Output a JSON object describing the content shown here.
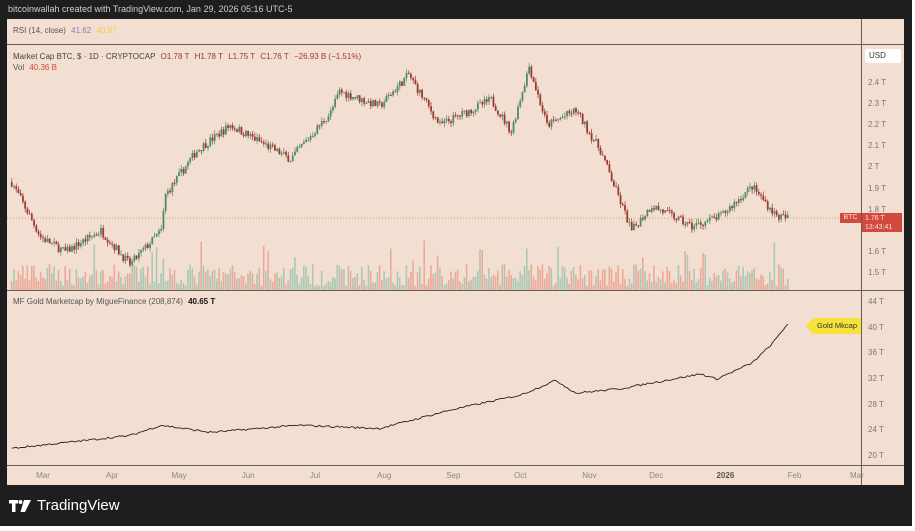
{
  "header": {
    "attribution": "bitcoinwallah created with TradingView.com, Jan 29, 2026 05:16 UTC-5"
  },
  "rsi": {
    "label": "RSI (14, close)",
    "value1": "41.62",
    "value2": "40.97",
    "color1": "#9b6fc0",
    "color2": "#f0d040"
  },
  "main": {
    "symbol": "Market Cap BTC, $ · 1D · CRYPTOCAP",
    "open": "O1.78 T",
    "high": "H1.78 T",
    "low": "L1.75 T",
    "close": "C1.76 T",
    "change": "−26.93 B (−1.51%)",
    "vol_label": "Vol",
    "vol_value": "40.36 B",
    "currency": "USD",
    "axis_ticks": [
      "2.4 T",
      "2.3 T",
      "2.2 T",
      "2.1 T",
      "2 T",
      "1.9 T",
      "1.8 T",
      "1.6 T",
      "1.5 T"
    ],
    "last_tag": "BTC",
    "last_price": "1.76 T",
    "countdown": "13:43:41"
  },
  "gold": {
    "label": "MF Gold Marketcap by MigueFinance (208,874)",
    "value": "40.65 T",
    "tag": "Gold Mkcap",
    "axis_ticks": [
      "44 T",
      "40 T",
      "36 T",
      "32 T",
      "28 T",
      "24 T",
      "20 T"
    ]
  },
  "time_axis": [
    "Mar",
    "Apr",
    "May",
    "Jun",
    "Jul",
    "Aug",
    "Sep",
    "Oct",
    "Nov",
    "Dec",
    "2026",
    "Feb",
    "Mar"
  ],
  "footer": {
    "brand": "TradingView"
  },
  "colors": {
    "background": "#f2dfd1",
    "up": "#4f8a6a",
    "down": "#9b3a2e",
    "last_price": "#d24a3c",
    "gold_tag": "#f5e23a"
  },
  "chart_data": [
    {
      "type": "candlestick",
      "title": "Market Cap BTC, $ · 1D · CRYPTOCAP",
      "unit": "T USD",
      "ylim": [
        1.45,
        2.55
      ],
      "keypoints": [
        [
          "2025-02-15",
          1.93
        ],
        [
          "2025-02-28",
          1.67
        ],
        [
          "2025-03-11",
          1.6
        ],
        [
          "2025-03-27",
          1.7
        ],
        [
          "2025-04-09",
          1.54
        ],
        [
          "2025-04-23",
          1.7
        ],
        [
          "2025-04-25",
          1.87
        ],
        [
          "2025-05-09",
          2.08
        ],
        [
          "2025-05-24",
          2.2
        ],
        [
          "2025-06-20",
          2.04
        ],
        [
          "2025-07-08",
          2.26
        ],
        [
          "2025-07-12",
          2.36
        ],
        [
          "2025-07-30",
          2.29
        ],
        [
          "2025-08-12",
          2.44
        ],
        [
          "2025-08-26",
          2.2
        ],
        [
          "2025-09-18",
          2.32
        ],
        [
          "2025-09-27",
          2.17
        ],
        [
          "2025-10-05",
          2.48
        ],
        [
          "2025-10-13",
          2.2
        ],
        [
          "2025-10-26",
          2.27
        ],
        [
          "2025-11-06",
          2.08
        ],
        [
          "2025-11-20",
          1.7
        ],
        [
          "2025-11-29",
          1.82
        ],
        [
          "2025-12-17",
          1.72
        ],
        [
          "2025-12-30",
          1.77
        ],
        [
          "2026-01-13",
          1.91
        ],
        [
          "2026-01-24",
          1.77
        ],
        [
          "2026-01-29",
          1.76
        ]
      ]
    },
    {
      "type": "line",
      "title": "MF Gold Marketcap by MigueFinance",
      "unit": "T USD",
      "ylim": [
        18,
        46
      ],
      "keypoints": [
        [
          "2025-02-15",
          21.2
        ],
        [
          "2025-04-09",
          23.2
        ],
        [
          "2025-04-23",
          24.8
        ],
        [
          "2025-05-15",
          23.7
        ],
        [
          "2025-06-24",
          24.8
        ],
        [
          "2025-07-30",
          24.3
        ],
        [
          "2025-08-31",
          27.2
        ],
        [
          "2025-10-01",
          29.5
        ],
        [
          "2025-10-17",
          31.8
        ],
        [
          "2025-10-26",
          29.8
        ],
        [
          "2025-11-15",
          30.5
        ],
        [
          "2025-12-21",
          32.8
        ],
        [
          "2025-12-28",
          32.0
        ],
        [
          "2026-01-13",
          34.5
        ],
        [
          "2026-01-22",
          37.5
        ],
        [
          "2026-01-29",
          40.65
        ]
      ]
    }
  ]
}
